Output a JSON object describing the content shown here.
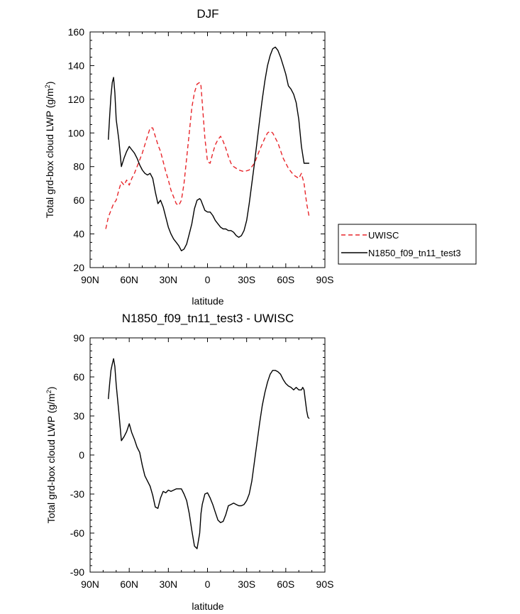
{
  "chart_data": [
    {
      "type": "line",
      "title": "DJF",
      "xlabel": "latitude",
      "ylabel_main": "Total grd-box cloud LWP (g/m",
      "ylabel_sup": "2",
      "ylabel_close": ")",
      "xlim": [
        -90,
        90
      ],
      "ylim": [
        20,
        160
      ],
      "x_ticks": [
        -90,
        -60,
        -30,
        0,
        30,
        60,
        90
      ],
      "x_tick_labels": [
        "90N",
        "60N",
        "30N",
        "0",
        "30S",
        "60S",
        "90S"
      ],
      "y_ticks": [
        20,
        40,
        60,
        80,
        100,
        120,
        140,
        160
      ],
      "y_tick_labels": [
        "20",
        "40",
        "60",
        "80",
        "100",
        "120",
        "140",
        "160"
      ],
      "legend": [
        "UWISC",
        "N1850_f09_tn11_test3"
      ],
      "series": [
        {
          "name": "UWISC",
          "color": "#e8262b",
          "dash": "dashed",
          "x": [
            -78,
            -76,
            -74,
            -72,
            -70,
            -68,
            -66,
            -64,
            -62,
            -60,
            -58,
            -56,
            -54,
            -52,
            -50,
            -48,
            -46,
            -44,
            -42,
            -40,
            -38,
            -36,
            -34,
            -32,
            -30,
            -28,
            -26,
            -24,
            -22,
            -20,
            -18,
            -16,
            -14,
            -12,
            -10,
            -8,
            -6,
            -5,
            -4,
            -2,
            0,
            2,
            4,
            6,
            8,
            10,
            12,
            14,
            16,
            18,
            20,
            24,
            28,
            32,
            36,
            40,
            44,
            46,
            48,
            50,
            54,
            58,
            62,
            66,
            70,
            72,
            74,
            76,
            78
          ],
          "values": [
            43,
            50,
            54,
            58,
            60,
            66,
            71,
            69,
            72,
            69,
            73,
            76,
            80,
            84,
            88,
            93,
            98,
            103,
            103,
            98,
            93,
            89,
            83,
            77,
            72,
            66,
            62,
            58,
            57,
            60,
            70,
            85,
            100,
            115,
            124,
            129,
            130,
            128,
            118,
            97,
            83,
            82,
            88,
            93,
            96,
            98,
            95,
            91,
            86,
            82,
            80,
            78,
            77,
            78,
            82,
            90,
            97,
            100,
            101,
            100,
            94,
            85,
            79,
            75,
            73,
            76,
            70,
            58,
            50
          ]
        },
        {
          "name": "N1850_f09_tn11_test3",
          "color": "#000000",
          "dash": "solid",
          "x": [
            -76,
            -75,
            -74,
            -73,
            -72,
            -71,
            -70,
            -68,
            -66,
            -64,
            -62,
            -60,
            -58,
            -56,
            -54,
            -52,
            -50,
            -48,
            -46,
            -44,
            -42,
            -40,
            -38,
            -36,
            -34,
            -32,
            -30,
            -28,
            -26,
            -24,
            -22,
            -20,
            -18,
            -16,
            -14,
            -12,
            -10,
            -8,
            -6,
            -5,
            -4,
            -2,
            0,
            2,
            4,
            6,
            8,
            10,
            12,
            14,
            16,
            18,
            20,
            22,
            24,
            26,
            28,
            30,
            32,
            34,
            36,
            38,
            40,
            42,
            44,
            46,
            48,
            50,
            52,
            54,
            56,
            58,
            60,
            62,
            64,
            66,
            68,
            70,
            72,
            74,
            76,
            78
          ],
          "values": [
            96,
            110,
            122,
            130,
            133,
            124,
            108,
            96,
            80,
            85,
            89,
            92,
            90,
            88,
            85,
            81,
            78,
            76,
            75,
            76,
            73,
            65,
            58,
            60,
            56,
            50,
            44,
            40,
            37,
            35,
            33,
            30,
            31,
            34,
            40,
            46,
            55,
            60,
            61,
            60,
            58,
            54,
            53,
            53,
            51,
            48,
            46,
            44,
            43,
            43,
            42,
            42,
            41,
            39,
            38,
            39,
            42,
            48,
            58,
            70,
            82,
            95,
            108,
            120,
            131,
            140,
            146,
            150,
            151,
            149,
            145,
            140,
            135,
            128,
            126,
            123,
            118,
            108,
            92,
            82,
            82,
            82
          ]
        }
      ]
    },
    {
      "type": "line",
      "title": "N1850_f09_tn11_test3 - UWISC",
      "xlabel": "latitude",
      "ylabel_main": "Total grd-box cloud LWP (g/m",
      "ylabel_sup": "2",
      "ylabel_close": ")",
      "xlim": [
        -90,
        90
      ],
      "ylim": [
        -90,
        90
      ],
      "x_ticks": [
        -90,
        -60,
        -30,
        0,
        30,
        60,
        90
      ],
      "x_tick_labels": [
        "90N",
        "60N",
        "30N",
        "0",
        "30S",
        "60S",
        "90S"
      ],
      "y_ticks": [
        -90,
        -60,
        -30,
        0,
        30,
        60,
        90
      ],
      "y_tick_labels": [
        "-90",
        "-60",
        "-30",
        "0",
        "30",
        "60",
        "90"
      ],
      "series": [
        {
          "name": "N1850_f09_tn11_test3 - UWISC",
          "color": "#000000",
          "dash": "solid",
          "x": [
            -76,
            -75,
            -74,
            -73,
            -72,
            -71,
            -70,
            -68,
            -66,
            -64,
            -62,
            -60,
            -58,
            -56,
            -54,
            -52,
            -50,
            -48,
            -46,
            -44,
            -42,
            -40,
            -38,
            -36,
            -34,
            -32,
            -30,
            -28,
            -26,
            -24,
            -22,
            -20,
            -18,
            -16,
            -14,
            -12,
            -10,
            -8,
            -6,
            -5,
            -4,
            -2,
            0,
            2,
            4,
            6,
            8,
            10,
            12,
            14,
            16,
            18,
            20,
            22,
            24,
            26,
            28,
            30,
            32,
            34,
            36,
            38,
            40,
            42,
            44,
            46,
            48,
            50,
            52,
            54,
            56,
            58,
            60,
            62,
            64,
            66,
            68,
            70,
            72,
            73,
            74,
            75,
            76,
            77,
            78
          ],
          "values": [
            43,
            55,
            65,
            70,
            74,
            68,
            54,
            33,
            11,
            14,
            18,
            24,
            17,
            12,
            6,
            2,
            -8,
            -16,
            -20,
            -24,
            -31,
            -40,
            -41,
            -33,
            -28,
            -29,
            -27,
            -28,
            -27,
            -26,
            -26,
            -26,
            -30,
            -35,
            -45,
            -58,
            -70,
            -72,
            -60,
            -45,
            -38,
            -30,
            -29,
            -33,
            -38,
            -44,
            -50,
            -52,
            -51,
            -46,
            -39,
            -38,
            -37,
            -38,
            -39,
            -39,
            -38,
            -35,
            -30,
            -20,
            -5,
            10,
            25,
            38,
            48,
            56,
            62,
            65,
            65,
            64,
            62,
            58,
            55,
            53,
            52,
            50,
            52,
            50,
            50,
            52,
            50,
            42,
            34,
            29,
            28
          ]
        }
      ]
    }
  ]
}
